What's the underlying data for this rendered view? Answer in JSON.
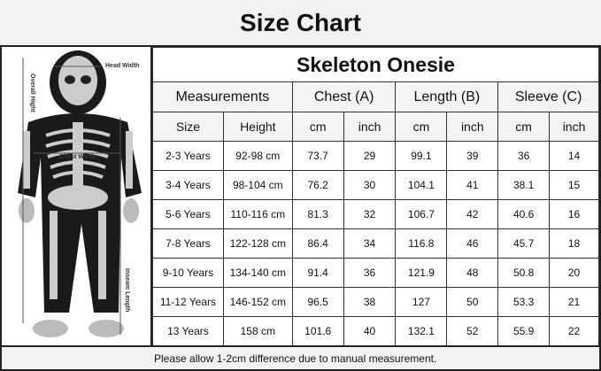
{
  "title": "Size Chart",
  "figure": {
    "labels": {
      "head_width": "Head Width",
      "overall_height": "Overall Hight",
      "chest_width": "Chest Width",
      "inseam_length": "Inseam Length"
    }
  },
  "table": {
    "product": "Skeleton Onesie",
    "group_headers": [
      "Measurements",
      "Chest (A)",
      "Length (B)",
      "Sleeve (C)"
    ],
    "sub_headers": [
      "Size",
      "Height",
      "cm",
      "inch",
      "cm",
      "inch",
      "cm",
      "inch"
    ],
    "rows": [
      [
        "2-3 Years",
        "92-98 cm",
        "73.7",
        "29",
        "99.1",
        "39",
        "36",
        "14"
      ],
      [
        "3-4 Years",
        "98-104 cm",
        "76.2",
        "30",
        "104.1",
        "41",
        "38.1",
        "15"
      ],
      [
        "5-6 Years",
        "110-116 cm",
        "81.3",
        "32",
        "106.7",
        "42",
        "40.6",
        "16"
      ],
      [
        "7-8 Years",
        "122-128 cm",
        "86.4",
        "34",
        "116.8",
        "46",
        "45.7",
        "18"
      ],
      [
        "9-10 Years",
        "134-140 cm",
        "91.4",
        "36",
        "121.9",
        "48",
        "50.8",
        "20"
      ],
      [
        "11-12 Years",
        "146-152 cm",
        "96.5",
        "38",
        "127",
        "50",
        "53.3",
        "21"
      ],
      [
        "13 Years",
        "158 cm",
        "101.6",
        "40",
        "132.1",
        "52",
        "55.9",
        "22"
      ]
    ]
  },
  "footer": "Please allow 1-2cm difference due to manual measurement."
}
